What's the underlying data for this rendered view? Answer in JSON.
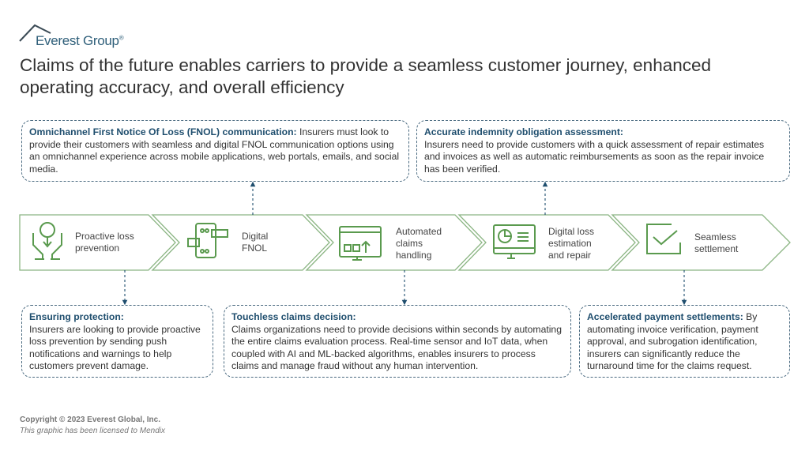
{
  "logo": {
    "text": "Everest Group",
    "mark": "®"
  },
  "title": "Claims of the future enables carriers to provide a seamless customer journey, enhanced operating accuracy, and overall efficiency",
  "stages": [
    {
      "label": "Proactive loss prevention",
      "icon": "hands-dollar-icon"
    },
    {
      "label": "Digital FNOL",
      "icon": "mobile-chat-icon"
    },
    {
      "label": "Automated claims handling",
      "icon": "monitor-upload-icon"
    },
    {
      "label": "Digital loss estimation and repair",
      "icon": "monitor-chart-icon"
    },
    {
      "label": "Seamless settlement",
      "icon": "checkbox-icon"
    }
  ],
  "top_boxes": [
    {
      "heading": "Omnichannel First Notice Of Loss (FNOL) communication:",
      "body": " Insurers must look to provide their customers with seamless and digital FNOL communication options using an omnichannel experience across mobile applications, web portals, emails, and social media."
    },
    {
      "heading": "Accurate indemnity obligation assessment:",
      "body": "Insurers need to provide customers with a quick assessment of repair estimates and invoices as well as automatic reimbursements as soon as the repair invoice has been verified."
    }
  ],
  "bottom_boxes": [
    {
      "heading": "Ensuring protection:",
      "body": "Insurers are looking to provide proactive loss prevention by sending push notifications and warnings to help customers prevent damage."
    },
    {
      "heading": "Touchless claims decision:",
      "body": "Claims organizations need to provide decisions within seconds by automating the entire claims evaluation process. Real-time sensor and IoT data, when coupled with AI and ML-backed algorithms, enables insurers to process claims and manage fraud without any human intervention."
    },
    {
      "heading": "Accelerated payment settlements:",
      "body": " By automating invoice verification, payment approval, and subrogation identification, insurers can significantly reduce the turnaround time for the claims request."
    }
  ],
  "footer": {
    "copyright": "Copyright © 2023 Everest Global, Inc.",
    "license": "This graphic has been licensed to Mendix"
  },
  "colors": {
    "green": "#5a9a4e",
    "navy": "#1f4e6e",
    "dash": "#4a6a80"
  }
}
